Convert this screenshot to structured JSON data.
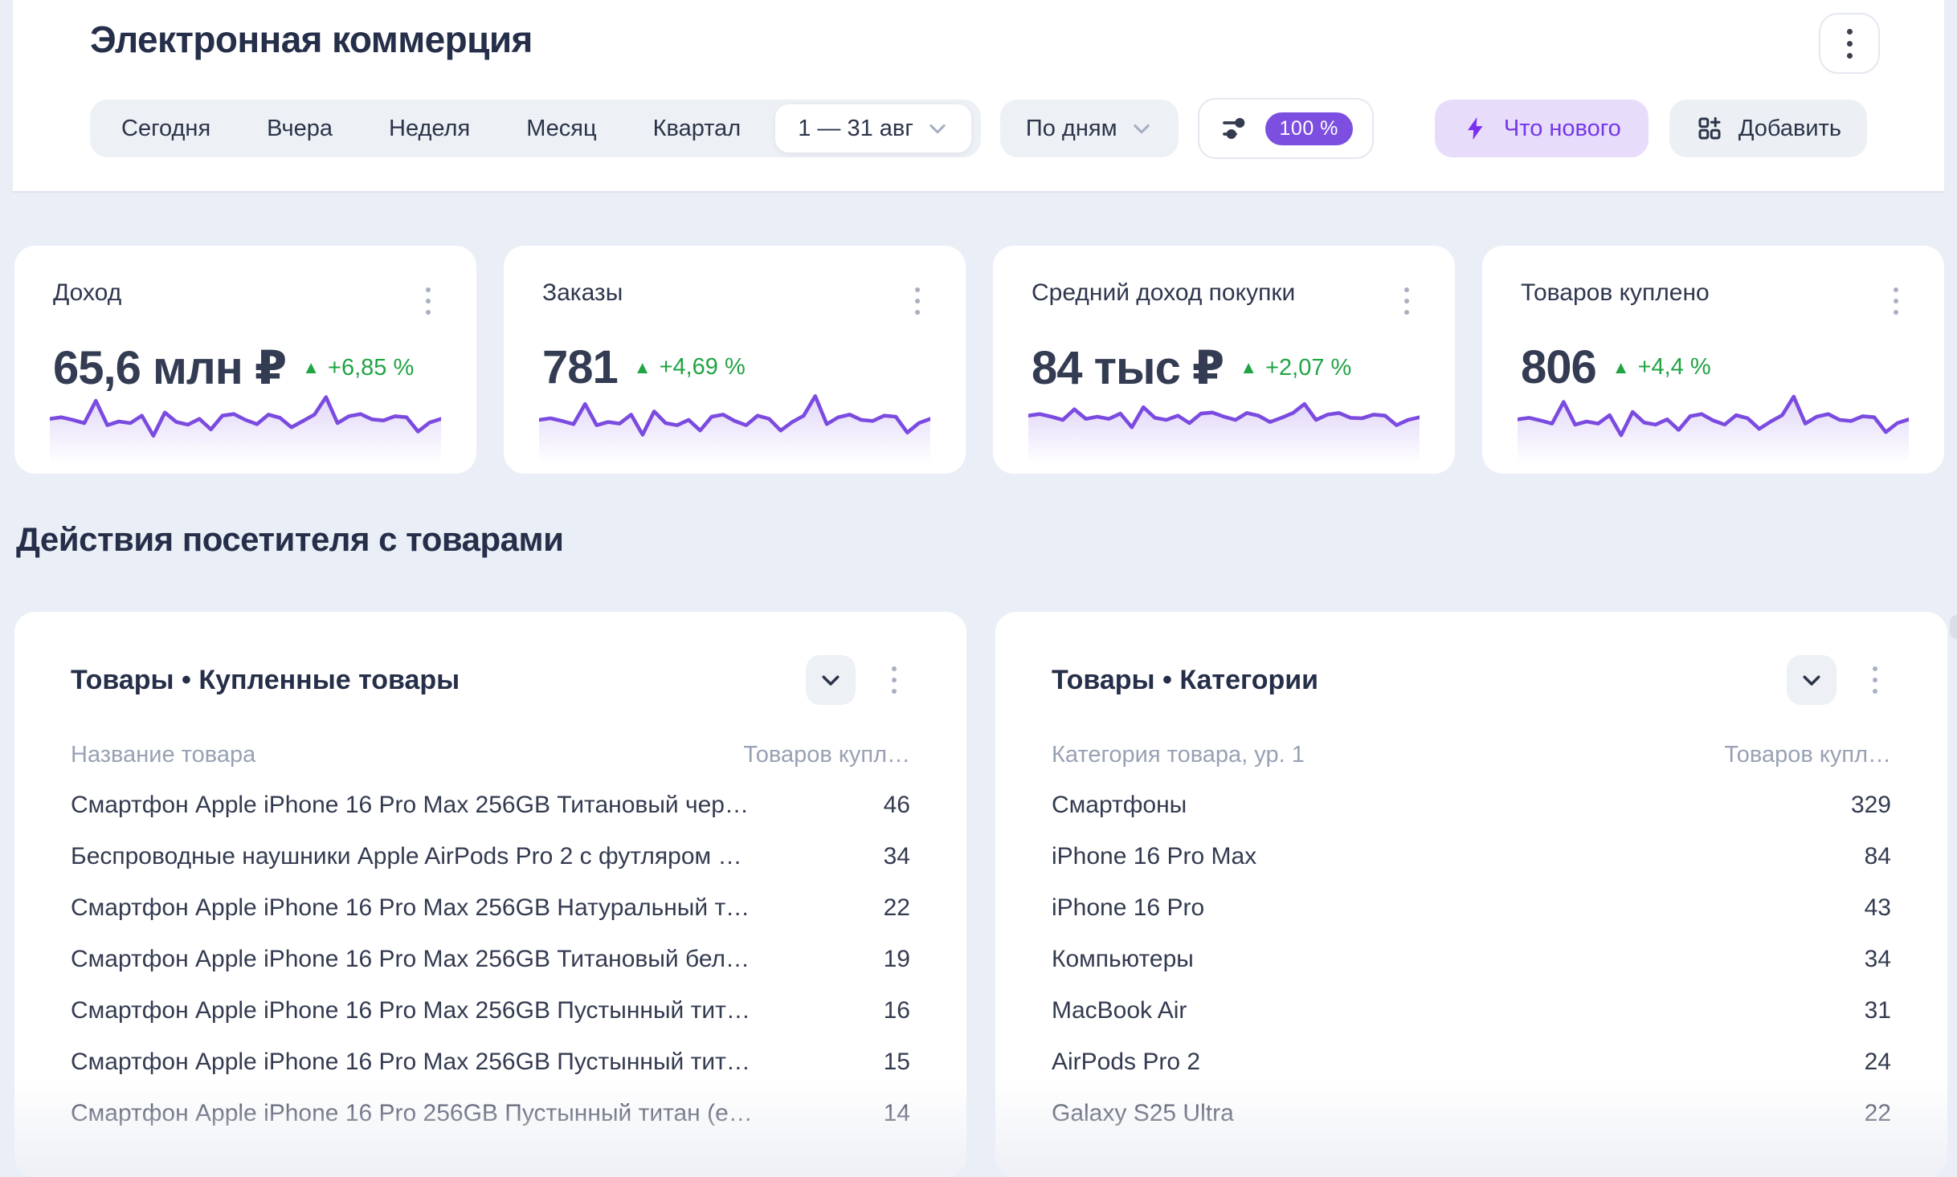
{
  "header": {
    "title": "Электронная коммерция",
    "filters": {
      "presets": [
        "Сегодня",
        "Вчера",
        "Неделя",
        "Месяц",
        "Квартал"
      ],
      "date_range": "1 — 31 авг",
      "granularity": "По дням",
      "sampling_badge": "100 %"
    },
    "whats_new_label": "Что нового",
    "add_label": "Добавить"
  },
  "icons": {
    "trend_up": "▲",
    "kebab": "kebab-vertical-icon",
    "chevron_down": "chevron-down-icon",
    "sliders": "sliders-icon",
    "lightning": "lightning-icon",
    "widget_add": "widget-add-icon"
  },
  "colors": {
    "page_bg": "#EAEEF6",
    "accent_purple": "#7C4FE0",
    "light_purple_bg": "#E7DDFB",
    "green_up": "#21A444",
    "text_dark": "#262F49",
    "text_muted": "#98A1B4"
  },
  "kpi": {
    "cards": [
      {
        "title": "Доход",
        "value": "65,6 млн ₽",
        "delta": "+6,85 %",
        "trend": "up",
        "sparkline": [
          52,
          55,
          50,
          44,
          86,
          40,
          47,
          44,
          58,
          20,
          64,
          46,
          41,
          52,
          32,
          58,
          61,
          50,
          42,
          60,
          54,
          36,
          48,
          60,
          93,
          44,
          57,
          61,
          51,
          49,
          57,
          55,
          28,
          45,
          52
        ]
      },
      {
        "title": "Заказы",
        "value": "781",
        "delta": "+4,69 %",
        "trend": "up",
        "sparkline": [
          50,
          53,
          48,
          42,
          80,
          40,
          46,
          43,
          60,
          22,
          66,
          44,
          40,
          50,
          30,
          56,
          60,
          48,
          40,
          58,
          52,
          30,
          46,
          58,
          95,
          42,
          55,
          60,
          50,
          48,
          58,
          56,
          26,
          44,
          52
        ]
      },
      {
        "title": "Средний доход покупки",
        "value": "84 тыс ₽",
        "delta": "+2,07 %",
        "trend": "up",
        "sparkline": [
          58,
          61,
          56,
          50,
          70,
          52,
          56,
          52,
          62,
          36,
          74,
          54,
          50,
          58,
          44,
          62,
          64,
          56,
          50,
          63,
          58,
          46,
          54,
          63,
          80,
          50,
          60,
          63,
          54,
          53,
          60,
          58,
          40,
          50,
          55
        ]
      },
      {
        "title": "Товаров куплено",
        "value": "806",
        "delta": "+4,4 %",
        "trend": "up",
        "sparkline": [
          51,
          54,
          49,
          43,
          84,
          41,
          47,
          43,
          59,
          21,
          65,
          45,
          41,
          51,
          31,
          57,
          61,
          49,
          41,
          59,
          53,
          33,
          47,
          59,
          94,
          43,
          56,
          61,
          50,
          48,
          57,
          55,
          27,
          44,
          51
        ]
      }
    ]
  },
  "section_title": "Действия посетителя с товарами",
  "tables": [
    {
      "title": "Товары • Купленные товары",
      "col1": "Название товара",
      "col2": "Товаров купл…",
      "rows": [
        {
          "name": "Смартфон Apple iPhone 16 Pro Max 256GB Титановый чер…",
          "value": "46"
        },
        {
          "name": "Беспроводные наушники Apple AirPods Pro 2 с футляром …",
          "value": "34"
        },
        {
          "name": "Смартфон Apple iPhone 16 Pro Max 256GB Натуральный т…",
          "value": "22"
        },
        {
          "name": "Смартфон Apple iPhone 16 Pro Max 256GB Титановый бел…",
          "value": "19"
        },
        {
          "name": "Смартфон Apple iPhone 16 Pro Max 256GB Пустынный тит…",
          "value": "16"
        },
        {
          "name": "Смартфон Apple iPhone 16 Pro Max 256GB Пустынный тит…",
          "value": "15"
        },
        {
          "name": "Смартфон Apple iPhone 16 Pro 256GB Пустынный титан (е…",
          "value": "14"
        }
      ]
    },
    {
      "title": "Товары • Категории",
      "col1": "Категория товара, ур. 1",
      "col2": "Товаров купл…",
      "rows": [
        {
          "name": "Смартфоны",
          "value": "329"
        },
        {
          "name": "iPhone 16 Pro Max",
          "value": "84"
        },
        {
          "name": "iPhone 16 Pro",
          "value": "43"
        },
        {
          "name": "Компьютеры",
          "value": "34"
        },
        {
          "name": "MacBook Air",
          "value": "31"
        },
        {
          "name": "AirPods Pro 2",
          "value": "24"
        },
        {
          "name": "Galaxy S25 Ultra",
          "value": "22"
        }
      ]
    }
  ]
}
